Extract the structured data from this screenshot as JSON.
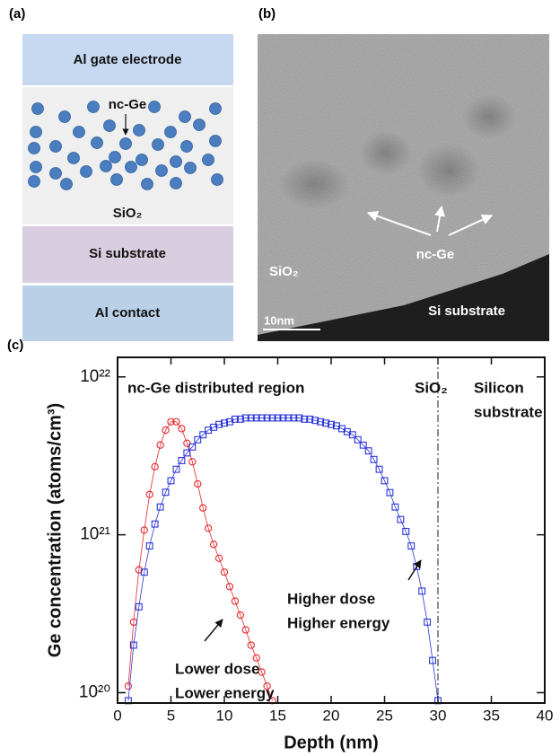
{
  "panel_a": {
    "label": "(a)",
    "layers": [
      "Al gate electrode",
      "Si substrate",
      "Al contact"
    ],
    "nc_label": "nc-Ge",
    "oxide_label": "SiO₂"
  },
  "panel_b": {
    "label": "(b)",
    "nc_label": "nc-Ge",
    "oxide_label": "SiO₂",
    "substrate_label": "Si substrate",
    "scale_bar": "10nm"
  },
  "chart_data": {
    "type": "scatter",
    "label": "(c)",
    "xlabel": "Depth (nm)",
    "ylabel": "Ge concentration  (atoms/cm³)",
    "xlim": [
      0,
      40
    ],
    "xticks": [
      0,
      5,
      10,
      15,
      20,
      25,
      30,
      35,
      40
    ],
    "ylim": [
      8.6e+19,
      1.33e+22
    ],
    "ylog": true,
    "yticks": [
      {
        "value": 1e+20,
        "label": "10²⁰"
      },
      {
        "value": 1e+21,
        "label": "10²¹"
      },
      {
        "value": 1e+22,
        "label": "10²²"
      }
    ],
    "vlines": [
      30
    ],
    "annotations": [
      "nc-Ge distributed region",
      "SiO₂",
      "Silicon",
      "substrate",
      "Higher dose",
      "Higher energy",
      "Lower dose",
      "Lower energy"
    ],
    "series": [
      {
        "color": "#e8262a",
        "marker": "circle",
        "x": [
          1,
          1.5,
          2,
          2.5,
          3,
          3.5,
          4,
          4.5,
          5,
          5.5,
          6,
          6.5,
          7,
          7.5,
          8,
          8.5,
          9,
          9.5,
          10,
          10.5,
          11,
          11.5,
          12,
          12.5,
          13,
          13.5,
          14,
          14.5
        ],
        "values": [
          1.1e+20,
          2.8e+20,
          6e+20,
          1.07e+21,
          1.8e+21,
          2.7e+21,
          3.7e+21,
          4.6e+21,
          5.2e+21,
          5.2e+21,
          4.7e+21,
          3.8e+21,
          2.9e+21,
          2.1e+21,
          1.48e+21,
          1.1e+21,
          8.7e+20,
          7.1e+20,
          5.8e+20,
          4.7e+20,
          3.8e+20,
          3.1e+20,
          2.5e+20,
          2e+20,
          1.66e+20,
          1.35e+20,
          1.1e+20,
          8.9e+19
        ]
      },
      {
        "color": "#2a35d8",
        "marker": "square",
        "x": [
          1,
          1.5,
          2,
          2.5,
          3,
          3.5,
          4,
          4.5,
          5,
          5.5,
          6,
          6.5,
          7,
          7.5,
          8,
          8.5,
          9,
          9.5,
          10,
          10.5,
          11,
          11.5,
          12,
          12.5,
          13,
          13.5,
          14,
          14.5,
          15,
          15.5,
          16,
          16.5,
          17,
          17.5,
          18,
          18.5,
          19,
          19.5,
          20,
          20.5,
          21,
          21.5,
          22,
          22.5,
          23,
          23.5,
          24,
          24.5,
          25,
          25.5,
          26,
          26.5,
          27,
          27.5,
          28,
          28.5,
          29,
          29.5,
          30
        ],
        "values": [
          8.9e+19,
          2e+20,
          3.5e+20,
          5.8e+20,
          8.5e+20,
          1.17e+21,
          1.5e+21,
          1.86e+21,
          2.2e+21,
          2.6e+21,
          2.95e+21,
          3.3e+21,
          3.6e+21,
          4e+21,
          4.3e+21,
          4.6e+21,
          4.8e+21,
          5e+21,
          5.1e+21,
          5.2e+21,
          5.4e+21,
          5.4e+21,
          5.5e+21,
          5.5e+21,
          5.5e+21,
          5.5e+21,
          5.5e+21,
          5.5e+21,
          5.5e+21,
          5.5e+21,
          5.5e+21,
          5.5e+21,
          5.5e+21,
          5.4e+21,
          5.4e+21,
          5.3e+21,
          5.2e+21,
          5.1e+21,
          5e+21,
          4.9e+21,
          4.7e+21,
          4.5e+21,
          4.3e+21,
          4e+21,
          3.7e+21,
          3.4e+21,
          3e+21,
          2.6e+21,
          2.2e+21,
          1.85e+21,
          1.5e+21,
          1.25e+21,
          1.05e+21,
          8.5e+20,
          6.3e+20,
          4.4e+20,
          2.8e+20,
          1.6e+20,
          8.9e+19
        ]
      }
    ]
  }
}
